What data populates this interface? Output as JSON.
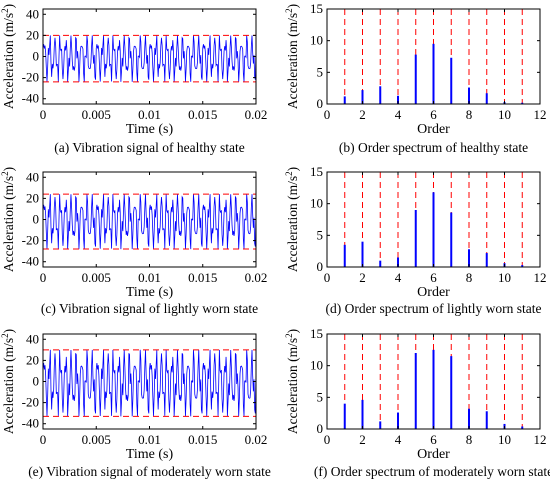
{
  "chart_data": [
    {
      "type": "line",
      "caption": "(a) Vibration signal of healthy state",
      "xlabel": "Time (s)",
      "ylabel": "Acceleration (m/s",
      "ylabel_sup": "2",
      "ylabel_close": ")",
      "xlim": [
        0,
        0.02
      ],
      "ylim": [
        -45,
        45
      ],
      "xticks": [
        0,
        0.005,
        0.01,
        0.015,
        0.02
      ],
      "xtick_labels": [
        "0",
        "0.005",
        "0.01",
        "0.015",
        "0.02"
      ],
      "yticks": [
        -40,
        -20,
        0,
        20,
        40
      ],
      "ytick_labels": [
        "-40",
        "-20",
        "0",
        "20",
        "40"
      ],
      "upper_limit": 20,
      "lower_limit": -24,
      "signal_peak": 20,
      "signal_trough": -24,
      "signal_cycles": 40,
      "line_color": "#0000ff",
      "limit_color": "#ff0000"
    },
    {
      "type": "bar",
      "caption": "(b) Order spectrum of healthy state",
      "xlabel": "Order",
      "ylabel": "Acceleration (m/s",
      "ylabel_sup": "2",
      "ylabel_close": ")",
      "xlim": [
        0,
        12
      ],
      "ylim": [
        0,
        15
      ],
      "xticks": [
        0,
        2,
        4,
        6,
        8,
        10,
        12
      ],
      "xtick_labels": [
        "0",
        "2",
        "4",
        "6",
        "8",
        "10",
        "12"
      ],
      "yticks": [
        0,
        5,
        10,
        15
      ],
      "ytick_labels": [
        "0",
        "5",
        "10",
        "15"
      ],
      "x": [
        1,
        2,
        3,
        4,
        5,
        6,
        7,
        8,
        9,
        10,
        11
      ],
      "values": [
        1.2,
        2.2,
        2.8,
        1.3,
        7.8,
        9.5,
        7.3,
        2.6,
        1.7,
        0.3,
        0.2
      ],
      "reference_max": 15,
      "line_color": "#0000ff",
      "limit_color": "#ff0000"
    },
    {
      "type": "line",
      "caption": "(c) Vibration signal of lightly worn state",
      "xlabel": "Time (s)",
      "ylabel": "Acceleration (m/s",
      "ylabel_sup": "2",
      "ylabel_close": ")",
      "xlim": [
        0,
        0.02
      ],
      "ylim": [
        -45,
        45
      ],
      "xticks": [
        0,
        0.005,
        0.01,
        0.015,
        0.02
      ],
      "xtick_labels": [
        "0",
        "0.005",
        "0.01",
        "0.015",
        "0.02"
      ],
      "yticks": [
        -40,
        -20,
        0,
        20,
        40
      ],
      "ytick_labels": [
        "-40",
        "-20",
        "0",
        "20",
        "40"
      ],
      "upper_limit": 24,
      "lower_limit": -28,
      "signal_peak": 24,
      "signal_trough": -28,
      "signal_cycles": 40,
      "line_color": "#0000ff",
      "limit_color": "#ff0000"
    },
    {
      "type": "bar",
      "caption": "(d) Order spectrum of lightly worn state",
      "xlabel": "Order",
      "ylabel": "Acceleration (m/s",
      "ylabel_sup": "2",
      "ylabel_close": ")",
      "xlim": [
        0,
        12
      ],
      "ylim": [
        0,
        15
      ],
      "xticks": [
        0,
        2,
        4,
        6,
        8,
        10,
        12
      ],
      "xtick_labels": [
        "0",
        "2",
        "4",
        "6",
        "8",
        "10",
        "12"
      ],
      "yticks": [
        0,
        5,
        10,
        15
      ],
      "ytick_labels": [
        "0",
        "5",
        "10",
        "15"
      ],
      "x": [
        1,
        2,
        3,
        4,
        5,
        6,
        7,
        8,
        9,
        10,
        11
      ],
      "values": [
        3.5,
        4.0,
        1.0,
        1.5,
        9.0,
        11.8,
        8.6,
        2.8,
        2.2,
        0.6,
        0.3
      ],
      "reference_max": 15,
      "line_color": "#0000ff",
      "limit_color": "#ff0000"
    },
    {
      "type": "line",
      "caption": "(e) Vibration signal of moderately worn state",
      "xlabel": "Time (s)",
      "ylabel": "Acceleration (m/s",
      "ylabel_sup": "2",
      "ylabel_close": ")",
      "xlim": [
        0,
        0.02
      ],
      "ylim": [
        -45,
        45
      ],
      "xticks": [
        0,
        0.005,
        0.01,
        0.015,
        0.02
      ],
      "xtick_labels": [
        "0",
        "0.005",
        "0.01",
        "0.015",
        "0.02"
      ],
      "yticks": [
        -40,
        -20,
        0,
        20,
        40
      ],
      "ytick_labels": [
        "-40",
        "-20",
        "0",
        "20",
        "40"
      ],
      "upper_limit": 30,
      "lower_limit": -33,
      "signal_peak": 30,
      "signal_trough": -33,
      "signal_cycles": 40,
      "line_color": "#0000ff",
      "limit_color": "#ff0000"
    },
    {
      "type": "bar",
      "caption": "(f) Order spectrum of moderately worn state",
      "xlabel": "Order",
      "ylabel": "Acceleration (m/s",
      "ylabel_sup": "2",
      "ylabel_close": ")",
      "xlim": [
        0,
        12
      ],
      "ylim": [
        0,
        15
      ],
      "xticks": [
        0,
        2,
        4,
        6,
        8,
        10,
        12
      ],
      "xtick_labels": [
        "0",
        "2",
        "4",
        "6",
        "8",
        "10",
        "12"
      ],
      "yticks": [
        0,
        5,
        10,
        15
      ],
      "ytick_labels": [
        "0",
        "5",
        "10",
        "15"
      ],
      "x": [
        1,
        2,
        3,
        4,
        5,
        6,
        7,
        8,
        9,
        10,
        11
      ],
      "values": [
        4.0,
        4.6,
        1.2,
        2.6,
        12.0,
        12.5,
        11.5,
        3.2,
        2.8,
        0.8,
        0.4
      ],
      "reference_max": 15,
      "line_color": "#0000ff",
      "limit_color": "#ff0000"
    }
  ]
}
